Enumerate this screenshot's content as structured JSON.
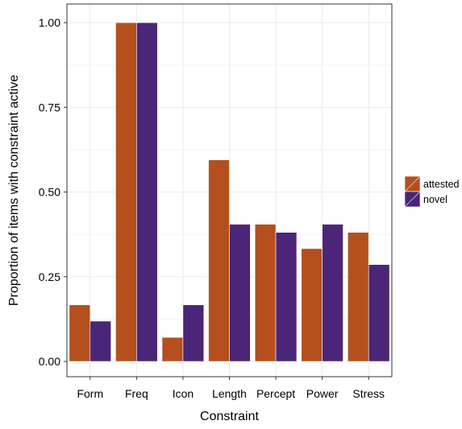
{
  "chart_data": {
    "type": "bar",
    "title": "",
    "xlabel": "Constraint",
    "ylabel": "Proportion of items with constraint active",
    "categories": [
      "Form",
      "Freq",
      "Icon",
      "Length",
      "Percept",
      "Power",
      "Stress"
    ],
    "series": [
      {
        "name": "attested",
        "color": "#B5501E",
        "values": [
          0.167,
          1.0,
          0.071,
          0.595,
          0.405,
          0.333,
          0.381
        ]
      },
      {
        "name": "novel",
        "color": "#4B2578",
        "values": [
          0.119,
          1.0,
          0.167,
          0.405,
          0.381,
          0.405,
          0.286
        ]
      }
    ],
    "ylim": [
      -0.045,
      1.055
    ],
    "yticks": [
      0.0,
      0.25,
      0.5,
      0.75,
      1.0
    ],
    "ytick_labels": [
      "0.00",
      "0.25",
      "0.50",
      "0.75",
      "1.00"
    ],
    "grid": true,
    "legend_position": "right"
  }
}
